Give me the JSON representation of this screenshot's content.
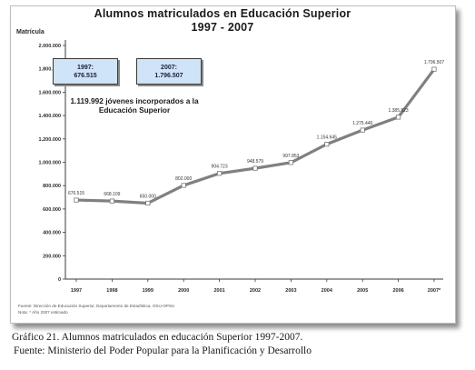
{
  "chart_data": {
    "type": "line",
    "title_line1": "Alumnos matriculados en Educación Superior",
    "title_line2": "1997 - 2007",
    "ylabel": "Matrícula",
    "ylim": [
      0,
      2000000
    ],
    "yticks": [
      0,
      200000,
      400000,
      600000,
      800000,
      1000000,
      1200000,
      1400000,
      1600000,
      1800000,
      2000000
    ],
    "ytick_labels": [
      "0",
      "200.000",
      "400.000",
      "600.000",
      "800.000",
      "1.000.000",
      "1.200.000",
      "1.400.000",
      "1.600.000",
      "1.800.000",
      "2.000.000"
    ],
    "categories": [
      "1997",
      "1998",
      "1999",
      "2000",
      "2001",
      "2002",
      "2003",
      "2004",
      "2005",
      "2006",
      "2007*"
    ],
    "values": [
      676515,
      668109,
      650000,
      802000,
      904723,
      948579,
      997853,
      1154645,
      1275446,
      1385823,
      1796507
    ],
    "value_labels": [
      "676.515",
      "668.109",
      "650.000",
      "802.000",
      "904.723",
      "948.579",
      "997.853",
      "1.154.645",
      "1.275.446",
      "1.385.823",
      "1.796.507"
    ],
    "grid": false,
    "line_color": "#808080",
    "marker_color": "#ffffff",
    "box_1997_year": "1997:",
    "box_1997_value": "676.515",
    "box_2007_year": "2007:",
    "box_2007_value": "1.796.507",
    "box_fill": "#cfe4f6",
    "annotation_line1": "1.119.992 jóvenes incorporados a la",
    "annotation_line2": "Educación Superior",
    "source_line1": "Fuente: Dirección de Educación Superior, Departamento de Estadística, OSU-OPSU",
    "source_line2": "Nota: * Año 2007 estimado"
  },
  "caption": {
    "line1": "Gráfico 21. Alumnos matriculados en educación Superior 1997-2007.",
    "line2": "Fuente: Ministerio del Poder Popular para la Planificación y Desarrollo"
  }
}
